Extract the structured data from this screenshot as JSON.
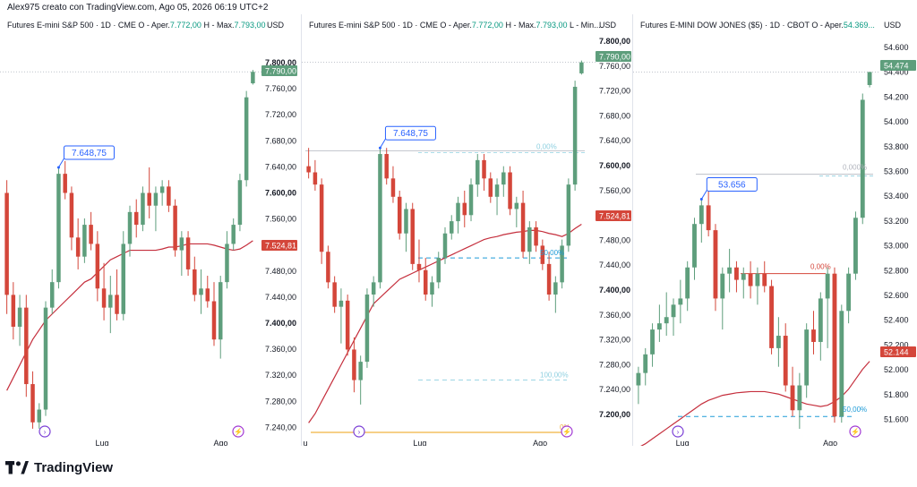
{
  "header": "Alex975 creato con TradingView.com, Ago 05, 2026 06:19 UTC+2",
  "brand": "TradingView",
  "colors": {
    "up": "#5e9e7c",
    "down": "#d4463a",
    "ma": "#c52f3d",
    "label_blue": "#2962ff",
    "fib": "#8fd0e0",
    "orange": "#f0b340"
  },
  "charts": [
    {
      "title_a": "Futures E-mini S&P 500 · 1D · CME  O - Aper.",
      "title_o": "7.772,00",
      "title_b": "  H - Max.",
      "title_h": "7.793,00",
      "currency": "USD",
      "x_labels": [
        "Lug",
        "Ago"
      ],
      "price_labels": [
        "7.800,00",
        "7.760,00",
        "7.720,00",
        "7.680,00",
        "7.640,00",
        "7.600,00",
        "7.560,00",
        "7.520,00",
        "7.480,00",
        "7.440,00",
        "7.400,00",
        "7.360,00",
        "7.320,00",
        "7.280,00",
        "7.240,00"
      ],
      "last_price": "7.790,00",
      "ma_price": "7.524,81",
      "peak_label": "7.648,75"
    },
    {
      "title_a": "Futures E-mini S&P 500 · 1D · CME  O - Aper.",
      "title_o": "7.772,00",
      "title_b": "  H - Max.",
      "title_h": "7.793,00",
      "title_c": "  L - Min....",
      "currency": "USD",
      "x_labels": [
        "u",
        "Lug",
        "Ago"
      ],
      "price_labels": [
        "7.800,00",
        "7.760,00",
        "7.720,00",
        "7.680,00",
        "7.640,00",
        "7.600,00",
        "7.560,00",
        "7.520,00",
        "7.480,00",
        "7.440,00",
        "7.400,00",
        "7.360,00",
        "7.320,00",
        "7.280,00",
        "7.240,00",
        "7.200,00"
      ],
      "last_price": "7.790,00",
      "ma_price": "7.524,81",
      "peak_label": "7.648,75",
      "fib_labels": [
        "0,00%",
        "50,00%",
        "100,00%",
        "0%"
      ]
    },
    {
      "title_a": "Futures E-MINI DOW JONES ($5) · 1D · CBOT  O - Aper.",
      "title_o": "54.369...",
      "currency": "USD",
      "x_labels": [
        "Lug",
        "Ago"
      ],
      "price_labels": [
        "54.600",
        "54.400",
        "54.200",
        "54.000",
        "53.800",
        "53.600",
        "53.400",
        "53.200",
        "53.000",
        "52.800",
        "52.600",
        "52.400",
        "52.200",
        "52.000",
        "51.800",
        "51.600"
      ],
      "last_price": "54.474",
      "ma_price": "52.144",
      "peak_label": "53.656",
      "fib_labels": [
        "0,000%",
        "50,00%",
        "0,00%"
      ]
    }
  ],
  "chart_data": [
    {
      "type": "candlestick",
      "title": "Futures E-mini S&P 500 · 1D · CME",
      "ylim": [
        7220,
        7810
      ],
      "ohlc": [
        [
          7600,
          7620,
          7410,
          7440
        ],
        [
          7440,
          7460,
          7370,
          7390
        ],
        [
          7390,
          7440,
          7360,
          7420
        ],
        [
          7420,
          7440,
          7280,
          7300
        ],
        [
          7300,
          7320,
          7230,
          7240
        ],
        [
          7240,
          7270,
          7230,
          7260
        ],
        [
          7260,
          7430,
          7250,
          7420
        ],
        [
          7420,
          7480,
          7410,
          7460
        ],
        [
          7460,
          7640,
          7450,
          7630
        ],
        [
          7630,
          7650,
          7590,
          7600
        ],
        [
          7600,
          7610,
          7510,
          7530
        ],
        [
          7530,
          7560,
          7480,
          7500
        ],
        [
          7500,
          7560,
          7490,
          7550
        ],
        [
          7550,
          7570,
          7510,
          7520
        ],
        [
          7520,
          7540,
          7430,
          7450
        ],
        [
          7450,
          7490,
          7400,
          7420
        ],
        [
          7420,
          7470,
          7380,
          7440
        ],
        [
          7440,
          7480,
          7400,
          7410
        ],
        [
          7410,
          7540,
          7400,
          7520
        ],
        [
          7520,
          7580,
          7500,
          7570
        ],
        [
          7570,
          7590,
          7530,
          7550
        ],
        [
          7550,
          7610,
          7540,
          7600
        ],
        [
          7600,
          7640,
          7560,
          7580
        ],
        [
          7580,
          7610,
          7540,
          7600
        ],
        [
          7600,
          7620,
          7580,
          7610
        ],
        [
          7610,
          7620,
          7570,
          7580
        ],
        [
          7580,
          7590,
          7500,
          7510
        ],
        [
          7510,
          7540,
          7470,
          7530
        ],
        [
          7530,
          7540,
          7470,
          7480
        ],
        [
          7480,
          7500,
          7430,
          7440
        ],
        [
          7440,
          7480,
          7410,
          7450
        ],
        [
          7450,
          7470,
          7420,
          7430
        ],
        [
          7430,
          7460,
          7360,
          7370
        ],
        [
          7370,
          7470,
          7340,
          7460
        ],
        [
          7460,
          7540,
          7450,
          7520
        ],
        [
          7520,
          7560,
          7510,
          7550
        ],
        [
          7550,
          7630,
          7540,
          7620
        ],
        [
          7620,
          7760,
          7610,
          7750
        ],
        [
          7772,
          7793,
          7770,
          7790
        ]
      ],
      "ma": [
        7290,
        7310,
        7330,
        7350,
        7370,
        7385,
        7400,
        7410,
        7420,
        7430,
        7440,
        7450,
        7460,
        7465,
        7475,
        7485,
        7495,
        7500,
        7505,
        7510,
        7510,
        7510,
        7510,
        7510,
        7512,
        7515,
        7515,
        7517,
        7520,
        7520,
        7520,
        7520,
        7518,
        7515,
        7512,
        7510,
        7512,
        7518,
        7525
      ]
    },
    {
      "type": "candlestick",
      "title": "Futures E-mini S&P 500 · 1D · CME",
      "ylim": [
        7180,
        7810
      ],
      "ohlc": [
        [
          7620,
          7650,
          7600,
          7610
        ],
        [
          7610,
          7630,
          7580,
          7590
        ],
        [
          7590,
          7600,
          7460,
          7480
        ],
        [
          7480,
          7490,
          7420,
          7430
        ],
        [
          7430,
          7440,
          7380,
          7390
        ],
        [
          7390,
          7420,
          7330,
          7400
        ],
        [
          7400,
          7410,
          7310,
          7320
        ],
        [
          7320,
          7340,
          7250,
          7270
        ],
        [
          7270,
          7310,
          7230,
          7300
        ],
        [
          7300,
          7420,
          7290,
          7410
        ],
        [
          7410,
          7440,
          7390,
          7430
        ],
        [
          7430,
          7650,
          7420,
          7640
        ],
        [
          7640,
          7650,
          7590,
          7600
        ],
        [
          7600,
          7620,
          7560,
          7570
        ],
        [
          7570,
          7580,
          7500,
          7510
        ],
        [
          7510,
          7560,
          7480,
          7550
        ],
        [
          7550,
          7560,
          7450,
          7460
        ],
        [
          7460,
          7500,
          7430,
          7450
        ],
        [
          7450,
          7470,
          7400,
          7410
        ],
        [
          7410,
          7440,
          7390,
          7430
        ],
        [
          7430,
          7480,
          7420,
          7470
        ],
        [
          7470,
          7520,
          7460,
          7510
        ],
        [
          7510,
          7540,
          7500,
          7530
        ],
        [
          7530,
          7570,
          7510,
          7560
        ],
        [
          7560,
          7580,
          7520,
          7540
        ],
        [
          7540,
          7600,
          7530,
          7590
        ],
        [
          7590,
          7640,
          7570,
          7630
        ],
        [
          7630,
          7640,
          7580,
          7600
        ],
        [
          7600,
          7610,
          7560,
          7570
        ],
        [
          7570,
          7600,
          7540,
          7590
        ],
        [
          7590,
          7620,
          7570,
          7610
        ],
        [
          7610,
          7620,
          7540,
          7550
        ],
        [
          7550,
          7570,
          7520,
          7560
        ],
        [
          7560,
          7580,
          7470,
          7480
        ],
        [
          7480,
          7530,
          7460,
          7520
        ],
        [
          7520,
          7530,
          7480,
          7490
        ],
        [
          7490,
          7500,
          7450,
          7460
        ],
        [
          7460,
          7480,
          7400,
          7410
        ],
        [
          7410,
          7440,
          7380,
          7430
        ],
        [
          7430,
          7500,
          7420,
          7490
        ],
        [
          7490,
          7600,
          7480,
          7590
        ],
        [
          7590,
          7760,
          7580,
          7750
        ],
        [
          7772,
          7793,
          7770,
          7790
        ]
      ],
      "ma": [
        7200,
        7215,
        7235,
        7255,
        7275,
        7295,
        7315,
        7335,
        7355,
        7375,
        7395,
        7405,
        7415,
        7425,
        7435,
        7440,
        7445,
        7450,
        7455,
        7460,
        7465,
        7470,
        7475,
        7480,
        7485,
        7490,
        7495,
        7500,
        7503,
        7505,
        7508,
        7510,
        7512,
        7513,
        7515,
        7515,
        7513,
        7510,
        7508,
        7505,
        7510,
        7518,
        7525
      ],
      "fib": {
        "level_0": 7645,
        "level_50": 7470,
        "level_100": 7270
      }
    },
    {
      "type": "candlestick",
      "title": "Futures E-MINI DOW JONES ($5)",
      "ylim": [
        51550,
        54650
      ],
      "ohlc": [
        [
          51950,
          52100,
          51800,
          52050
        ],
        [
          52050,
          52250,
          51950,
          52200
        ],
        [
          52200,
          52450,
          52100,
          52400
        ],
        [
          52400,
          52600,
          52300,
          52450
        ],
        [
          52450,
          52700,
          52350,
          52500
        ],
        [
          52500,
          52650,
          52350,
          52600
        ],
        [
          52600,
          52800,
          52450,
          52650
        ],
        [
          52650,
          52950,
          52550,
          52900
        ],
        [
          52900,
          53300,
          52800,
          53250
        ],
        [
          53250,
          53450,
          53100,
          53400
        ],
        [
          53400,
          53550,
          53150,
          53200
        ],
        [
          53200,
          53250,
          52550,
          52650
        ],
        [
          52650,
          52900,
          52400,
          52850
        ],
        [
          52850,
          53050,
          52700,
          52900
        ],
        [
          52900,
          52950,
          52700,
          52800
        ],
        [
          52800,
          52900,
          52650,
          52850
        ],
        [
          52850,
          52950,
          52650,
          52750
        ],
        [
          52750,
          52900,
          52600,
          52850
        ],
        [
          52850,
          52950,
          52700,
          52750
        ],
        [
          52750,
          52800,
          52200,
          52250
        ],
        [
          52250,
          52500,
          52100,
          52350
        ],
        [
          52350,
          52450,
          51900,
          51950
        ],
        [
          51950,
          52100,
          51700,
          51750
        ],
        [
          51750,
          52050,
          51600,
          51950
        ],
        [
          51950,
          52450,
          51850,
          52400
        ],
        [
          52400,
          52550,
          52200,
          52300
        ],
        [
          52300,
          52700,
          52150,
          52650
        ],
        [
          52650,
          52900,
          52250,
          52850
        ],
        [
          52850,
          52900,
          51650,
          51700
        ],
        [
          51700,
          52600,
          51650,
          52550
        ],
        [
          52550,
          52900,
          52450,
          52850
        ],
        [
          52850,
          53350,
          52800,
          53300
        ],
        [
          53300,
          54300,
          53250,
          54250
        ],
        [
          54369,
          54474,
          54350,
          54474
        ]
      ],
      "ma": [
        51450,
        51480,
        51520,
        51560,
        51600,
        51640,
        51680,
        51720,
        51760,
        51800,
        51830,
        51850,
        51870,
        51880,
        51890,
        51895,
        51900,
        51900,
        51900,
        51890,
        51880,
        51860,
        51840,
        51820,
        51800,
        51790,
        51780,
        51790,
        51820,
        51860,
        51920,
        52000,
        52080,
        52144
      ],
      "fib": {
        "level_0": 53650,
        "level_50": 51700,
        "hline": 52850
      }
    }
  ]
}
